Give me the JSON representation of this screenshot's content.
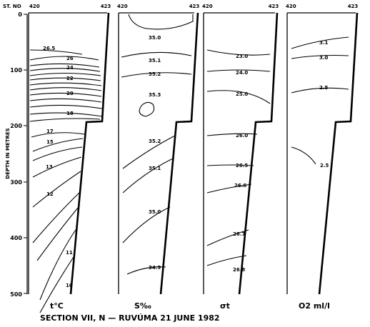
{
  "station_label": "ST. NO",
  "depth_axis_label": "DEPTH IN METRES",
  "depth_ticks": [
    "0",
    "100",
    "200",
    "300",
    "400",
    "500"
  ],
  "caption": "SECTION VII,  N — RUVÚMA  21 JUNE 1982",
  "panels": [
    {
      "id": "temperature",
      "stations": [
        "420",
        "423"
      ],
      "bottom_label": "t°C",
      "isolines": [
        "26.5",
        "26",
        "24",
        "22",
        "20",
        "18",
        "17",
        "15",
        "13",
        "12",
        "11",
        "10"
      ]
    },
    {
      "id": "salinity",
      "stations": [
        "420",
        "423"
      ],
      "bottom_label": "S‰",
      "isolines": [
        "35.0",
        "35.1",
        "35.2",
        "35.3",
        "35.2",
        "35.1",
        "35.0",
        "34.9"
      ]
    },
    {
      "id": "density",
      "stations": [
        "420",
        "423"
      ],
      "bottom_label": "σt",
      "isolines": [
        "23.0",
        "24.0",
        "25.0",
        "26.0",
        "26.5",
        "26.6",
        "26.7",
        "26.8"
      ]
    },
    {
      "id": "oxygen",
      "stations": [
        "420",
        "423"
      ],
      "bottom_label": "O2 ml/l",
      "isolines": [
        "3.1",
        "3.0",
        "2.5",
        "2.5"
      ]
    }
  ]
}
